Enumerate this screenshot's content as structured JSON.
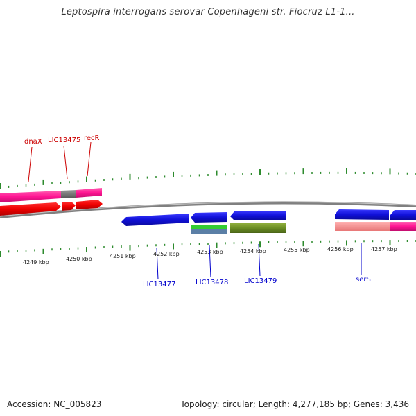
{
  "title": "Leptospira interrogans serovar Copenhageni str. Fiocruz L1-1...",
  "footer": {
    "accession": "Accession: NC_005823",
    "summary": "Topology: circular; Length: 4,277,185 bp; Genes: 3,436"
  },
  "colors": {
    "backbone": "#808080",
    "tick": "#2e8b2e",
    "label_red": "#cc0000",
    "label_blue": "#0000cc"
  },
  "tick_labels": [
    "4249 kbp",
    "4250 kbp",
    "4251 kbp",
    "4252 kbp",
    "4253 kbp",
    "4254 kbp",
    "4255 kbp",
    "4256 kbp",
    "4257 kbp"
  ],
  "gene_labels": {
    "dnaX": "dnaX",
    "LIC13475": "LIC13475",
    "recR": "recR",
    "LIC13477": "LIC13477",
    "LIC13478": "LIC13478",
    "LIC13479": "LIC13479",
    "serS": "serS"
  }
}
